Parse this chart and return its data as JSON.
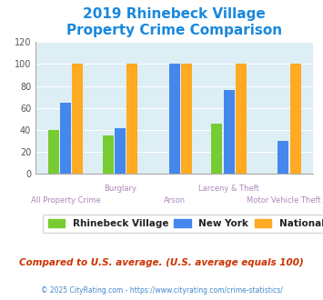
{
  "title": "2019 Rhinebeck Village\nProperty Crime Comparison",
  "title_color": "#1a88dd",
  "title_fontsize": 11,
  "categories": [
    "All Property Crime",
    "Burglary",
    "Arson",
    "Larceny & Theft",
    "Motor Vehicle Theft"
  ],
  "rhinebeck": [
    40,
    35,
    0,
    46,
    0
  ],
  "newyork": [
    65,
    42,
    100,
    76,
    30
  ],
  "national": [
    100,
    100,
    100,
    100,
    100
  ],
  "rhinebeck_color": "#77cc33",
  "newyork_color": "#4488ee",
  "national_color": "#ffaa22",
  "bg_color": "#ddeef5",
  "ylim": [
    0,
    120
  ],
  "yticks": [
    0,
    20,
    40,
    60,
    80,
    100,
    120
  ],
  "xlabel_color": "#aa88bb",
  "grid_color": "#ffffff",
  "legend_labels": [
    "Rhinebeck Village",
    "New York",
    "National"
  ],
  "footnote": "Compared to U.S. average. (U.S. average equals 100)",
  "footnote2": "© 2025 CityRating.com - https://www.cityrating.com/crime-statistics/",
  "footnote_color": "#cc3300",
  "footnote2_color": "#4488cc",
  "bar_width": 0.2,
  "bar_gap": 0.02
}
